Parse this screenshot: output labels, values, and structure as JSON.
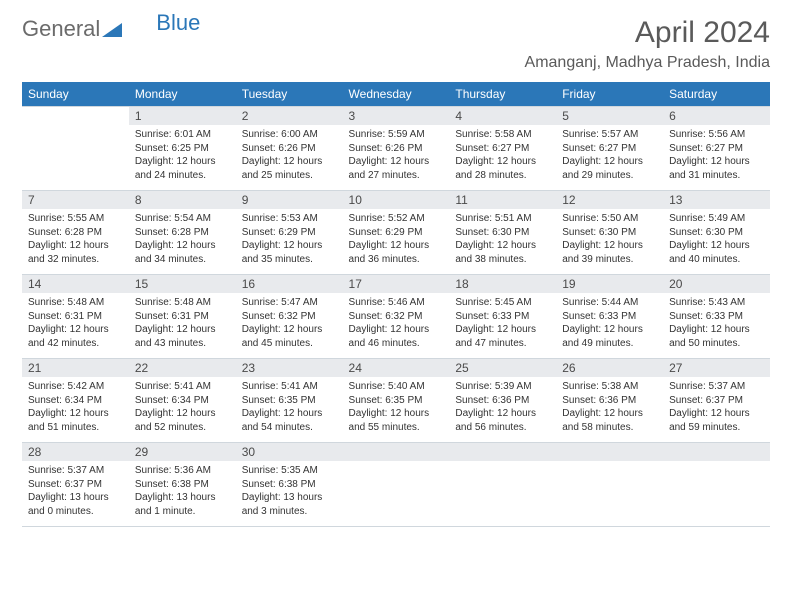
{
  "brand": {
    "part1": "General",
    "part2": "Blue"
  },
  "title": "April 2024",
  "location": "Amanganj, Madhya Pradesh, India",
  "colors": {
    "header_bg": "#2b77b8",
    "header_fg": "#ffffff",
    "daynum_bg": "#e8eaed",
    "text": "#333333"
  },
  "weekdays": [
    "Sunday",
    "Monday",
    "Tuesday",
    "Wednesday",
    "Thursday",
    "Friday",
    "Saturday"
  ],
  "weeks": [
    [
      null,
      {
        "n": "1",
        "sr": "Sunrise: 6:01 AM",
        "ss": "Sunset: 6:25 PM",
        "dl": "Daylight: 12 hours and 24 minutes."
      },
      {
        "n": "2",
        "sr": "Sunrise: 6:00 AM",
        "ss": "Sunset: 6:26 PM",
        "dl": "Daylight: 12 hours and 25 minutes."
      },
      {
        "n": "3",
        "sr": "Sunrise: 5:59 AM",
        "ss": "Sunset: 6:26 PM",
        "dl": "Daylight: 12 hours and 27 minutes."
      },
      {
        "n": "4",
        "sr": "Sunrise: 5:58 AM",
        "ss": "Sunset: 6:27 PM",
        "dl": "Daylight: 12 hours and 28 minutes."
      },
      {
        "n": "5",
        "sr": "Sunrise: 5:57 AM",
        "ss": "Sunset: 6:27 PM",
        "dl": "Daylight: 12 hours and 29 minutes."
      },
      {
        "n": "6",
        "sr": "Sunrise: 5:56 AM",
        "ss": "Sunset: 6:27 PM",
        "dl": "Daylight: 12 hours and 31 minutes."
      }
    ],
    [
      {
        "n": "7",
        "sr": "Sunrise: 5:55 AM",
        "ss": "Sunset: 6:28 PM",
        "dl": "Daylight: 12 hours and 32 minutes."
      },
      {
        "n": "8",
        "sr": "Sunrise: 5:54 AM",
        "ss": "Sunset: 6:28 PM",
        "dl": "Daylight: 12 hours and 34 minutes."
      },
      {
        "n": "9",
        "sr": "Sunrise: 5:53 AM",
        "ss": "Sunset: 6:29 PM",
        "dl": "Daylight: 12 hours and 35 minutes."
      },
      {
        "n": "10",
        "sr": "Sunrise: 5:52 AM",
        "ss": "Sunset: 6:29 PM",
        "dl": "Daylight: 12 hours and 36 minutes."
      },
      {
        "n": "11",
        "sr": "Sunrise: 5:51 AM",
        "ss": "Sunset: 6:30 PM",
        "dl": "Daylight: 12 hours and 38 minutes."
      },
      {
        "n": "12",
        "sr": "Sunrise: 5:50 AM",
        "ss": "Sunset: 6:30 PM",
        "dl": "Daylight: 12 hours and 39 minutes."
      },
      {
        "n": "13",
        "sr": "Sunrise: 5:49 AM",
        "ss": "Sunset: 6:30 PM",
        "dl": "Daylight: 12 hours and 40 minutes."
      }
    ],
    [
      {
        "n": "14",
        "sr": "Sunrise: 5:48 AM",
        "ss": "Sunset: 6:31 PM",
        "dl": "Daylight: 12 hours and 42 minutes."
      },
      {
        "n": "15",
        "sr": "Sunrise: 5:48 AM",
        "ss": "Sunset: 6:31 PM",
        "dl": "Daylight: 12 hours and 43 minutes."
      },
      {
        "n": "16",
        "sr": "Sunrise: 5:47 AM",
        "ss": "Sunset: 6:32 PM",
        "dl": "Daylight: 12 hours and 45 minutes."
      },
      {
        "n": "17",
        "sr": "Sunrise: 5:46 AM",
        "ss": "Sunset: 6:32 PM",
        "dl": "Daylight: 12 hours and 46 minutes."
      },
      {
        "n": "18",
        "sr": "Sunrise: 5:45 AM",
        "ss": "Sunset: 6:33 PM",
        "dl": "Daylight: 12 hours and 47 minutes."
      },
      {
        "n": "19",
        "sr": "Sunrise: 5:44 AM",
        "ss": "Sunset: 6:33 PM",
        "dl": "Daylight: 12 hours and 49 minutes."
      },
      {
        "n": "20",
        "sr": "Sunrise: 5:43 AM",
        "ss": "Sunset: 6:33 PM",
        "dl": "Daylight: 12 hours and 50 minutes."
      }
    ],
    [
      {
        "n": "21",
        "sr": "Sunrise: 5:42 AM",
        "ss": "Sunset: 6:34 PM",
        "dl": "Daylight: 12 hours and 51 minutes."
      },
      {
        "n": "22",
        "sr": "Sunrise: 5:41 AM",
        "ss": "Sunset: 6:34 PM",
        "dl": "Daylight: 12 hours and 52 minutes."
      },
      {
        "n": "23",
        "sr": "Sunrise: 5:41 AM",
        "ss": "Sunset: 6:35 PM",
        "dl": "Daylight: 12 hours and 54 minutes."
      },
      {
        "n": "24",
        "sr": "Sunrise: 5:40 AM",
        "ss": "Sunset: 6:35 PM",
        "dl": "Daylight: 12 hours and 55 minutes."
      },
      {
        "n": "25",
        "sr": "Sunrise: 5:39 AM",
        "ss": "Sunset: 6:36 PM",
        "dl": "Daylight: 12 hours and 56 minutes."
      },
      {
        "n": "26",
        "sr": "Sunrise: 5:38 AM",
        "ss": "Sunset: 6:36 PM",
        "dl": "Daylight: 12 hours and 58 minutes."
      },
      {
        "n": "27",
        "sr": "Sunrise: 5:37 AM",
        "ss": "Sunset: 6:37 PM",
        "dl": "Daylight: 12 hours and 59 minutes."
      }
    ],
    [
      {
        "n": "28",
        "sr": "Sunrise: 5:37 AM",
        "ss": "Sunset: 6:37 PM",
        "dl": "Daylight: 13 hours and 0 minutes."
      },
      {
        "n": "29",
        "sr": "Sunrise: 5:36 AM",
        "ss": "Sunset: 6:38 PM",
        "dl": "Daylight: 13 hours and 1 minute."
      },
      {
        "n": "30",
        "sr": "Sunrise: 5:35 AM",
        "ss": "Sunset: 6:38 PM",
        "dl": "Daylight: 13 hours and 3 minutes."
      },
      null,
      null,
      null,
      null
    ]
  ]
}
